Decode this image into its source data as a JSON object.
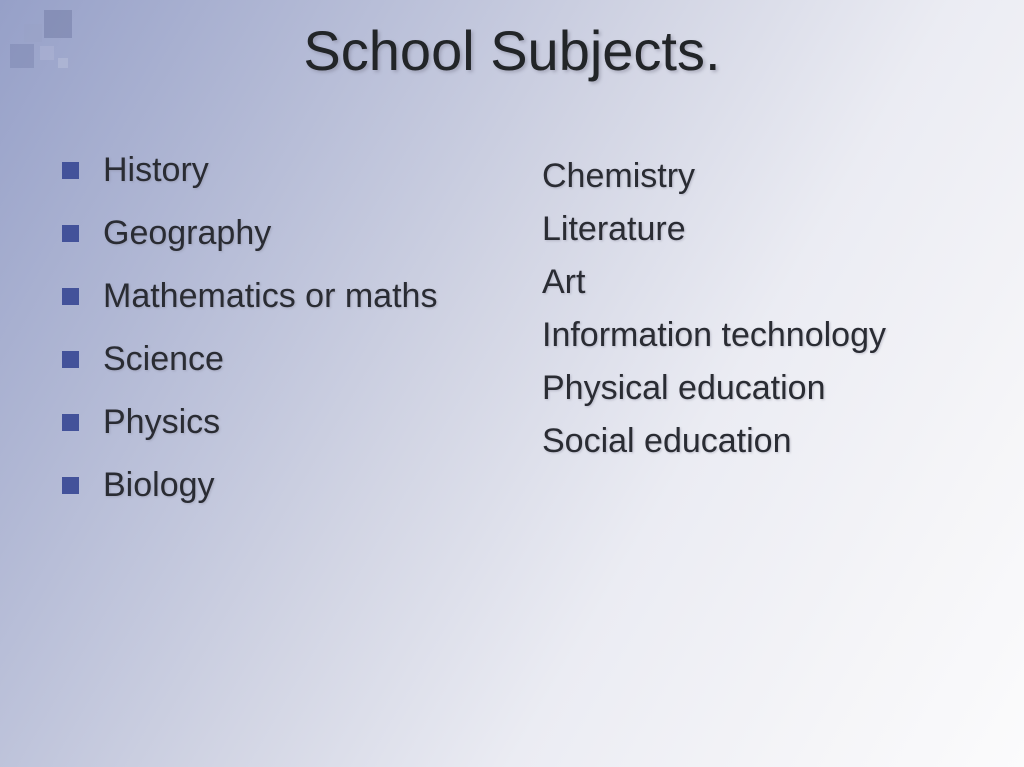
{
  "slide": {
    "title": "School Subjects.",
    "left_items": [
      "History",
      "Geography",
      "Mathematics or maths",
      "Science",
      "Physics",
      "Biology"
    ],
    "right_items": [
      "Chemistry",
      "Literature",
      "Art",
      "Information technology",
      "Physical education",
      "Social education"
    ]
  },
  "style": {
    "background_gradient": [
      "#96a0c8",
      "#b0b7d4",
      "#d2d5e4",
      "#ebecf3",
      "#f5f5f8",
      "#fbfbfc"
    ],
    "bullet_color": "#43529a",
    "title_fontsize": 56,
    "item_fontsize": 34,
    "text_color": "#2a2c33",
    "font_family": "Arial",
    "slide_width": 1024,
    "slide_height": 767
  }
}
